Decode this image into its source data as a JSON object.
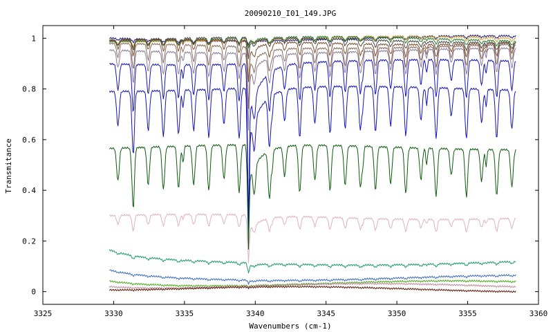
{
  "chart_data": {
    "type": "line",
    "title": "20090210_I01_149.JPG",
    "xlabel": "Wavenumbers (cm-1)",
    "ylabel": "Transmitance",
    "xlim": [
      3325,
      3360
    ],
    "ylim": [
      -0.05,
      1.05
    ],
    "x_ticks": [
      "3325",
      "3330",
      "3335",
      "3340",
      "3345",
      "3350",
      "3355",
      "3360"
    ],
    "y_ticks": [
      "0",
      "0.2",
      "0.4",
      "0.6",
      "0.8",
      "1"
    ],
    "x_tick_values": [
      3325,
      3330,
      3335,
      3340,
      3345,
      3350,
      3355,
      3360
    ],
    "y_tick_values": [
      0,
      0.2,
      0.4,
      0.6,
      0.8,
      1
    ],
    "x_range": [
      3329.7,
      3358.4
    ],
    "strong_line_x": 3339.5,
    "grid": false,
    "legend": "none",
    "series": [
      {
        "color": "#1a1a7a",
        "base": 1.0,
        "depth": 0.01,
        "strong": 0.01
      },
      {
        "color": "#d4a23a",
        "base": 0.998,
        "depth": 0.015,
        "strong": 0.02
      },
      {
        "color": "#2a7a2a",
        "base": 0.996,
        "depth": 0.02,
        "strong": 0.03
      },
      {
        "color": "#444444",
        "base": 0.993,
        "depth": 0.03,
        "strong": 0.06
      },
      {
        "color": "#7a4a2a",
        "base": 0.985,
        "depth": 0.05,
        "strong": 0.12
      },
      {
        "color": "#8a6a5a",
        "base": 0.97,
        "depth": 0.08,
        "strong": 0.18
      },
      {
        "color": "#8a7a9a",
        "base": 0.95,
        "depth": 0.1,
        "strong": 0.22
      },
      {
        "color": "#1111bb",
        "base": 0.905,
        "depth": 0.15,
        "strong": 0.46
      },
      {
        "color": "#1111bb",
        "base": 0.8,
        "depth": 0.2,
        "strong": 0.46
      },
      {
        "color": "#0a5a0a",
        "base": 0.57,
        "depth": 0.19,
        "strong": 0.3
      },
      {
        "color": "#e0b0c0",
        "base": 0.295,
        "depth": 0.05,
        "strong": 0.14
      },
      {
        "color": "#1a9a6a",
        "base": 0.115,
        "depth": 0.01,
        "strong": 0.03,
        "start": 0.155,
        "startDecay": 2.0
      },
      {
        "color": "#3a6ac0",
        "base": 0.055,
        "depth": 0.005,
        "strong": 0.01,
        "start": 0.08,
        "startDecay": 2.0
      },
      {
        "color": "#4aaa1a",
        "base": 0.033,
        "depth": 0.003,
        "strong": 0.005,
        "start": 0.046,
        "startDecay": 2.0
      },
      {
        "color": "#c08a9a",
        "base": 0.022,
        "depth": 0.002,
        "strong": 0.004,
        "start": 0.03,
        "startDecay": 2.0
      },
      {
        "color": "#5a1a0a",
        "base": 0.01,
        "depth": 0.002,
        "strong": 0.003,
        "start": 0.014,
        "startDecay": 2.0
      }
    ]
  }
}
